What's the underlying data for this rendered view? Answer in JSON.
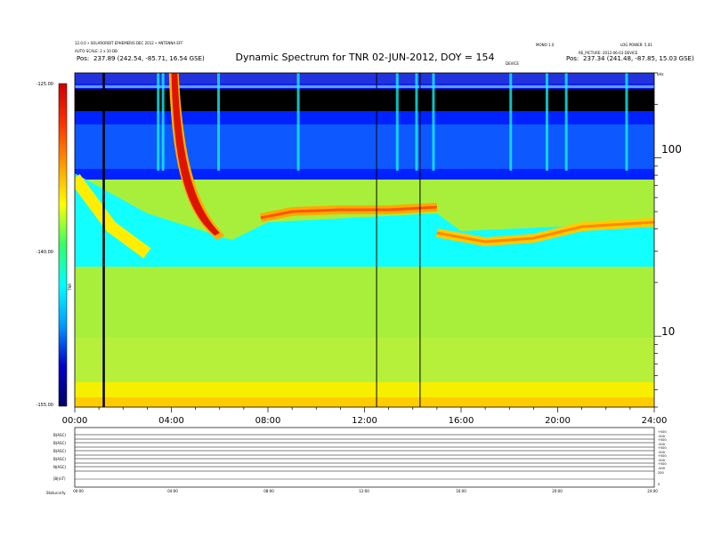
{
  "header": {
    "title": "Dynamic Spectrum for TNR 02-JUN-2012, DOY = 154",
    "left_line1": "12.0.0 • SOLARORBIT EPHEMERIS DEC 2012 • ANTENNA EFF",
    "left_line2": "AUTO-SCALE: 2 x 10 DB",
    "left_pos_label": "Pos:",
    "left_pos_value": "237.89 (242.54, -85.71, 16.54 GSE)",
    "center_right_tag": "DEVICE",
    "right_line1a": "MONO 1.0",
    "right_line1b": "LOG POWER: 5.01",
    "right_line2": "RE_PICTURE: 2012-06-03 DEVICE",
    "right_pos_label": "Pos:",
    "right_pos_value": "237.34 (241.48, -87.85, 15.03 GSE)",
    "right_corner": "kHz"
  },
  "chart_data": {
    "type": "heatmap",
    "title": "Dynamic Spectrum for TNR 02-JUN-2012, DOY = 154",
    "x": {
      "range_hours": [
        0,
        24
      ],
      "tick_labels": [
        "00:00",
        "04:00",
        "08:00",
        "12:00",
        "16:00",
        "20:00",
        "24:00"
      ]
    },
    "y_right": {
      "scale": "log",
      "range_khz": [
        4,
        300
      ],
      "tick_labels": [
        "100",
        "10"
      ],
      "tick_values": [
        100,
        10
      ],
      "unit_label": "kHz"
    },
    "colorbar": {
      "tick_labels": [
        "-125.00",
        "-140.00",
        "-155.00"
      ],
      "tick_values": [
        -125,
        -140,
        -155
      ],
      "axis_label": "TNR",
      "colors": [
        "#cc0000",
        "#ff3300",
        "#ff9900",
        "#ffff00",
        "#33ff66",
        "#00ffff",
        "#0099ff",
        "#0000cc",
        "#000066"
      ]
    },
    "colors": {
      "band_low_yellow": "#f6f000",
      "band_low": "#99ee33",
      "band_mid": "#a8ef3c",
      "cyan": "#11ffff",
      "blue": "#0022ff",
      "dark": "#000000",
      "red": "#dd1500"
    },
    "vertical_lines_hours": [
      1.2,
      12.5,
      14.3
    ],
    "features": [
      {
        "name": "type III burst",
        "start_hour": 3.6,
        "end_hour": 6.3
      },
      {
        "name": "plasma line",
        "start_hour": 7.7,
        "end_hour": 15
      },
      {
        "name": "plasma line",
        "start_hour": 15.0,
        "end_hour": 24
      }
    ]
  },
  "lower_panel": {
    "row_labels": [
      "B(ASC)",
      "B(ASC)",
      "B(ASC)",
      "B(ASC)",
      "N(ASC)",
      "|B|(nT)"
    ],
    "right_labels": [
      "+500",
      "-500",
      "+500",
      "-500",
      "+500",
      "-500",
      "+500",
      "-500",
      "+500",
      "-500",
      "200",
      "0"
    ],
    "bottom_ticks": [
      "00:00",
      "04:00",
      "08:00",
      "12:00",
      "16:00",
      "20:00",
      "24:00"
    ],
    "footer_left": "Status:",
    "footer_left2": "srty"
  }
}
